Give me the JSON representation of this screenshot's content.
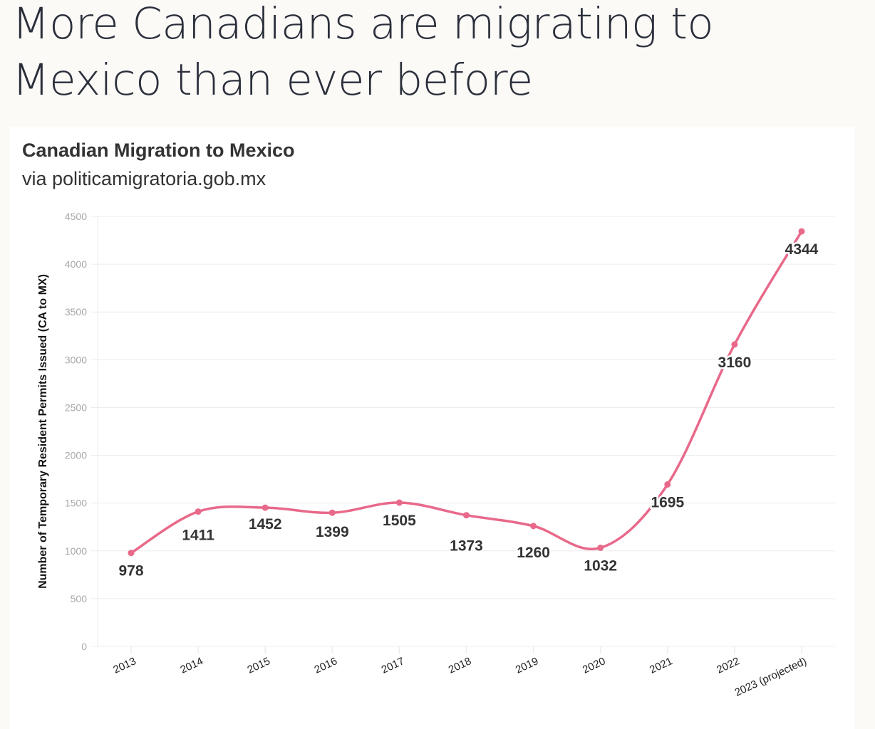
{
  "headline": "More Canadians are migrating to Mexico than ever before",
  "colors": {
    "line": "#e8698a",
    "grid": "#ececec",
    "background": "#fbfaf7",
    "card": "#ffffff"
  },
  "chart_data": {
    "type": "line",
    "title": "Canadian Migration to Mexico",
    "subtitle": "via politicamigratoria.gob.mx",
    "xlabel": "",
    "ylabel": "Number of Temporary Resident Permits Issued (CA to MX)",
    "ylim": [
      0,
      4500
    ],
    "yticks": [
      0,
      500,
      1000,
      1500,
      2000,
      2500,
      3000,
      3500,
      4000,
      4500
    ],
    "grid": true,
    "legend": "none",
    "categories": [
      "2013",
      "2014",
      "2015",
      "2016",
      "2017",
      "2018",
      "2019",
      "2020",
      "2021",
      "2022",
      "2023 (projected)"
    ],
    "series": [
      {
        "name": "Temporary Resident Permits",
        "values": [
          978,
          1411,
          1452,
          1399,
          1505,
          1373,
          1260,
          1032,
          1695,
          3160,
          4344
        ],
        "labels": [
          "978",
          "1411",
          "1452",
          "1399",
          "1505",
          "1373",
          "1260",
          "1032",
          "1695",
          "3160",
          "4344"
        ]
      }
    ]
  }
}
